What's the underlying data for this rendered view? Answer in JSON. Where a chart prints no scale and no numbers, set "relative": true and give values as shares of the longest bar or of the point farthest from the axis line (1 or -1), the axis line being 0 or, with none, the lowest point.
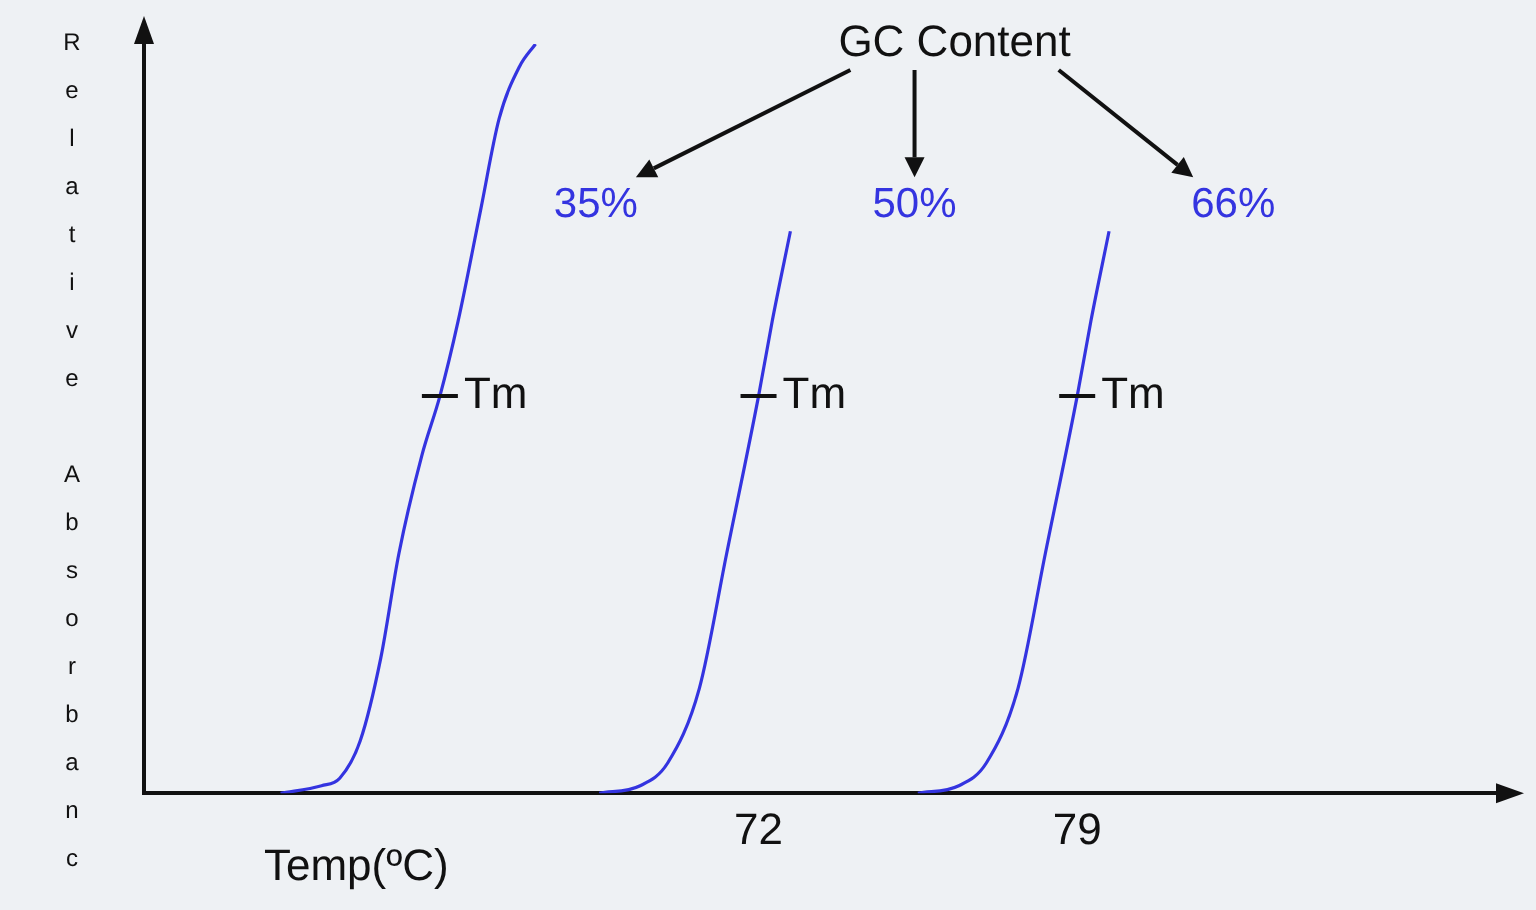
{
  "chart_data": {
    "type": "line",
    "relative": true,
    "xlabel": "Temp(ºC)",
    "ylabel": "Relative Absorbanc",
    "xlim": [
      58.5,
      88.2
    ],
    "xticks": [
      72,
      79
    ],
    "grid": false,
    "legend": false,
    "marker": "none",
    "line_style": "solid",
    "tick_labels": "x",
    "legend_title": "GC Content",
    "series": [
      {
        "name": "35%",
        "color": "#3434e0",
        "x": [
          61.5,
          62.4,
          62.8,
          63.25,
          63.7,
          64.1,
          64.6,
          65.0,
          65.4,
          65.9,
          66.3,
          66.75,
          67.1
        ],
        "values": [
          0,
          0.01,
          0.02,
          0.07,
          0.18,
          0.32,
          0.45,
          0.53,
          0.63,
          0.78,
          0.9,
          0.97,
          1
        ]
      },
      {
        "name": "50%",
        "color": "#3434e0",
        "x": [
          68.5,
          69.4,
          70.0,
          70.7,
          71.3,
          72.0,
          72.3,
          72.7
        ],
        "values": [
          0,
          0.01,
          0.04,
          0.14,
          0.32,
          0.53,
          0.63,
          0.75
        ]
      },
      {
        "name": "66%",
        "color": "#3434e0",
        "x": [
          75.5,
          76.4,
          77.0,
          77.7,
          78.3,
          79.0,
          79.3,
          79.7
        ],
        "values": [
          0,
          0.01,
          0.04,
          0.14,
          0.32,
          0.53,
          0.63,
          0.75
        ]
      }
    ],
    "annotations": [
      {
        "text": "Tm",
        "x": 65.0,
        "y": 0.53
      },
      {
        "text": "Tm",
        "x": 72.0,
        "y": 0.53
      },
      {
        "text": "Tm",
        "x": 79.0,
        "y": 0.53
      }
    ]
  }
}
